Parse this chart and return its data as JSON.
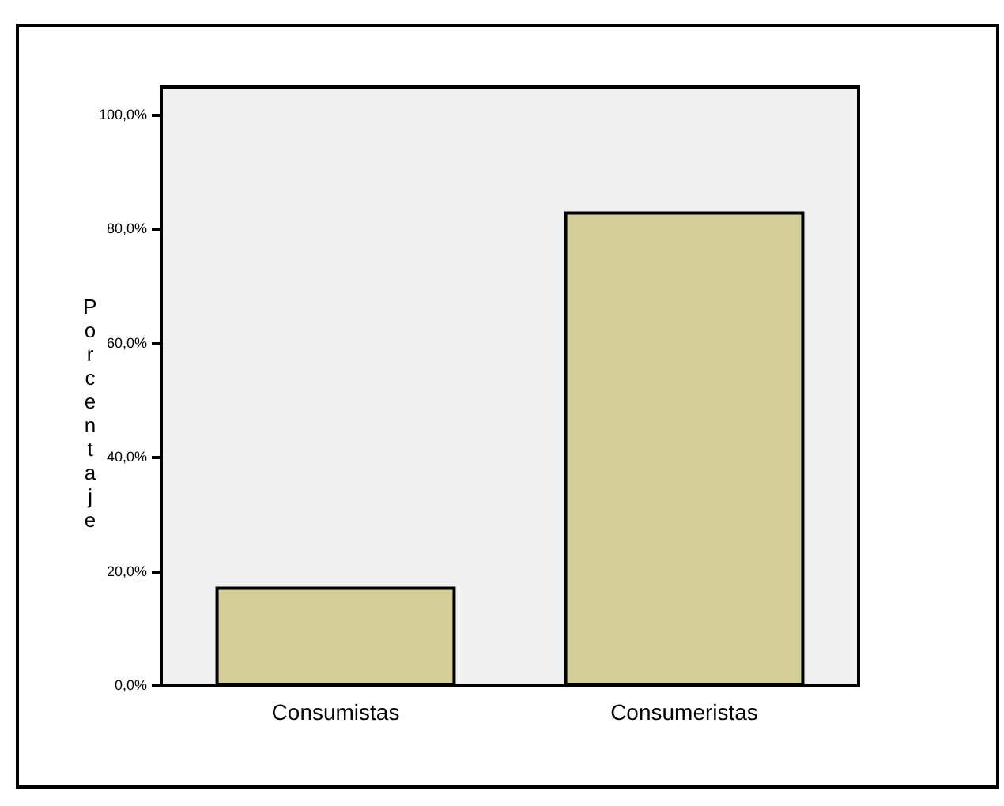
{
  "chart_data": {
    "type": "bar",
    "ylabel": "Porcentaje",
    "categories": [
      "Consumistas",
      "Consumeristas"
    ],
    "values": [
      17.1,
      82.9
    ],
    "color": "#d3cf96",
    "ylim": [
      0,
      105
    ],
    "yticks": [
      {
        "value": 0,
        "label": "0,0%"
      },
      {
        "value": 20,
        "label": "20,0%"
      },
      {
        "value": 40,
        "label": "40,0%"
      },
      {
        "value": 60,
        "label": "60,0%"
      },
      {
        "value": 80,
        "label": "80,0%"
      },
      {
        "value": 100,
        "label": "100,0%"
      }
    ],
    "grid": false,
    "legend": false
  }
}
